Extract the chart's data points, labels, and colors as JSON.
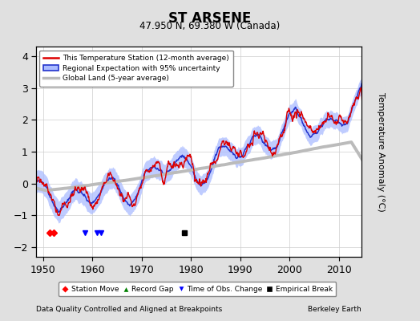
{
  "title": "ST ARSENE",
  "subtitle": "47.950 N, 69.380 W (Canada)",
  "ylabel": "Temperature Anomaly (°C)",
  "xlabel_left": "Data Quality Controlled and Aligned at Breakpoints",
  "xlabel_right": "Berkeley Earth",
  "ylim": [
    -2.3,
    4.3
  ],
  "xlim": [
    1948.5,
    2014.5
  ],
  "yticks": [
    -2,
    -1,
    0,
    1,
    2,
    3,
    4
  ],
  "xticks": [
    1950,
    1960,
    1970,
    1980,
    1990,
    2000,
    2010
  ],
  "bg_color": "#e0e0e0",
  "plot_bg_color": "#ffffff",
  "grid_color": "#cccccc",
  "station_color": "#dd0000",
  "regional_color": "#2233cc",
  "regional_fill_color": "#aabbff",
  "global_color": "#bbbbbb",
  "seed": 17,
  "empirical_break_year": 1978.7,
  "empirical_break_y": -1.55,
  "station_move_years": [
    1951.3,
    1952.1
  ],
  "time_obs_years": [
    1958.5,
    1961.0,
    1961.8
  ],
  "marker_y": -1.55
}
